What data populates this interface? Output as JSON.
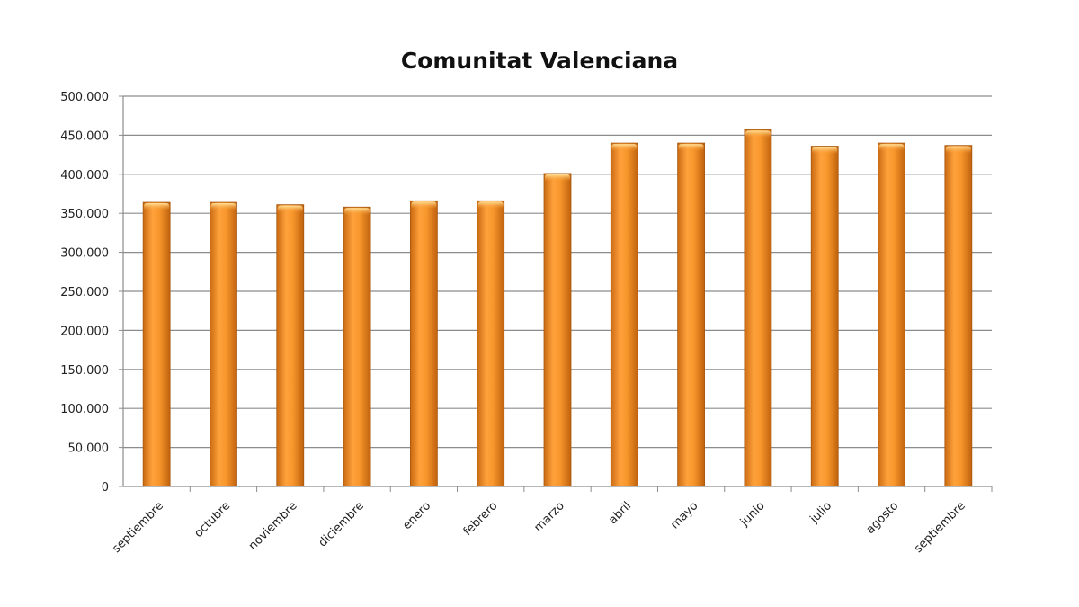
{
  "chart_data": {
    "type": "bar",
    "title": "Comunitat Valenciana",
    "xlabel": "",
    "ylabel": "",
    "categories": [
      "septiembre",
      "octubre",
      "noviembre",
      "diciembre",
      "enero",
      "febrero",
      "marzo",
      "abril",
      "mayo",
      "junio",
      "julio",
      "agosto",
      "septiembre"
    ],
    "values": [
      364000,
      364000,
      361000,
      358000,
      366000,
      366000,
      401000,
      440000,
      440000,
      457000,
      436000,
      440000,
      437000
    ],
    "ylim": [
      0,
      500000
    ],
    "yticks": [
      0,
      50000,
      100000,
      150000,
      200000,
      250000,
      300000,
      350000,
      400000,
      450000,
      500000
    ],
    "ytick_labels": [
      "0",
      "50.000",
      "100.000",
      "150.000",
      "200.000",
      "250.000",
      "300.000",
      "350.000",
      "400.000",
      "450.000",
      "500.000"
    ],
    "grid": true,
    "legend": "none",
    "colors": {
      "bar": "#f7962b",
      "bar_light": "#ffc66b",
      "bar_dark": "#c96a12",
      "grid": "#8c8c8c"
    }
  }
}
